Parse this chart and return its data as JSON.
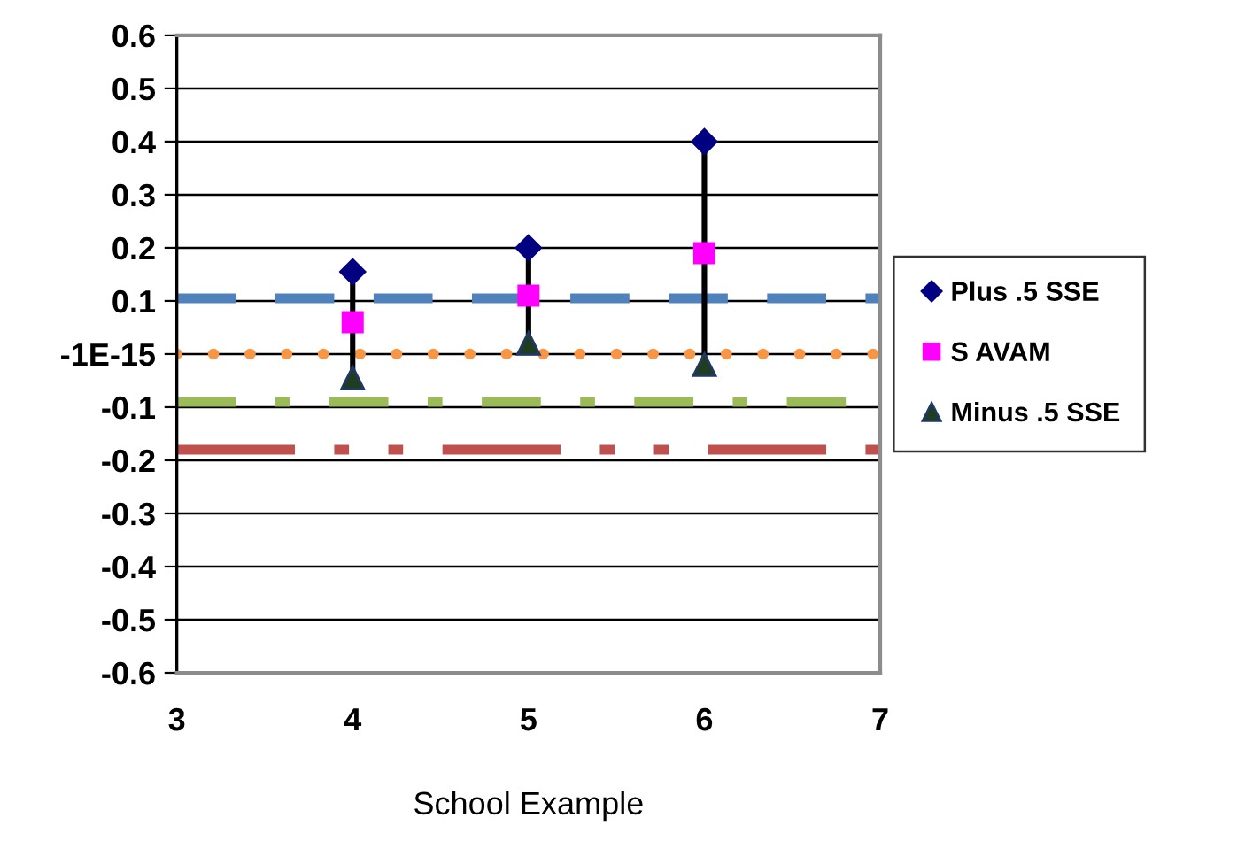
{
  "chart_data": {
    "type": "scatter",
    "xlabel": "School Example",
    "xlim": [
      3,
      7
    ],
    "xticks": [
      3,
      4,
      5,
      6,
      7
    ],
    "ylim": [
      -0.6,
      0.6
    ],
    "yticks": [
      -0.6,
      -0.5,
      -0.4,
      -0.3,
      -0.2,
      -0.1,
      {
        "value": 0,
        "label": "-1E-15"
      },
      0.1,
      0.2,
      0.3,
      0.4,
      0.5,
      0.6
    ],
    "grid": "y",
    "legend": "right",
    "series": [
      {
        "type": "line",
        "color": "#000000",
        "marker": "none",
        "x": [
          4,
          4
        ],
        "values": [
          0.155,
          -0.045
        ]
      },
      {
        "type": "line",
        "color": "#000000",
        "marker": "none",
        "x": [
          5,
          5
        ],
        "values": [
          0.2,
          0.02
        ]
      },
      {
        "type": "line",
        "color": "#000000",
        "marker": "none",
        "x": [
          6,
          6
        ],
        "values": [
          0.4,
          -0.02
        ]
      },
      {
        "name": "Plus .5 SSE",
        "color": "#000080",
        "marker": "diamond",
        "x": [
          4,
          5,
          6
        ],
        "values": [
          0.155,
          0.2,
          0.4
        ]
      },
      {
        "name": "S AVAM",
        "color": "#ff00ff",
        "marker": "square",
        "x": [
          4,
          5,
          6
        ],
        "values": [
          0.06,
          0.11,
          0.19
        ]
      },
      {
        "name": "Minus .5 SSE",
        "color": "#1f3d1f",
        "marker": "triangle",
        "x": [
          4,
          5,
          6
        ],
        "values": [
          -0.045,
          0.02,
          -0.02
        ]
      }
    ],
    "ref_lines": [
      {
        "axis": "y",
        "value": 0.105,
        "color": "#4f81bd",
        "line_style": "dashed"
      },
      {
        "axis": "y",
        "value": 0,
        "color": "#f79646",
        "line_style": "dotted"
      },
      {
        "axis": "y",
        "value": -0.09,
        "color": "#9bbb59",
        "line_style": "dashdot"
      },
      {
        "axis": "y",
        "value": -0.18,
        "color": "#c0504d",
        "line_style": "dashdotdot"
      }
    ]
  }
}
